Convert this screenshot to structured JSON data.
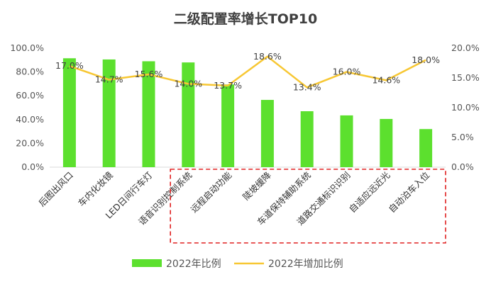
{
  "chart_data": {
    "type": "bar",
    "title": "二级配置率增长TOP10",
    "categories": [
      "后图出风口",
      "车内化妆镜",
      "LED日间行车灯",
      "语音识别控制系统",
      "远程启动功能",
      "陡坡缓降",
      "车道保持辅助系统",
      "道路交通标识识别",
      "自适应远近光",
      "自动泊车入位"
    ],
    "series": [
      {
        "name": "2022年比例",
        "type": "bar",
        "axis": "left",
        "color": "#5ce02e",
        "values": [
          91.5,
          90.5,
          89.0,
          88.0,
          69.5,
          56.5,
          47.0,
          43.5,
          40.5,
          32.0
        ]
      },
      {
        "name": "2022年增加比例",
        "type": "line",
        "axis": "right",
        "color": "#f7c733",
        "values": [
          17.0,
          14.7,
          15.6,
          14.0,
          13.7,
          18.6,
          13.4,
          16.0,
          14.6,
          18.0
        ],
        "labels": [
          "17.0%",
          "14.7%",
          "15.6%",
          "14.0%",
          "13.7%",
          "18.6%",
          "13.4%",
          "16.0%",
          "14.6%",
          "18.0%"
        ]
      }
    ],
    "y_left": {
      "min": 0,
      "max": 100,
      "ticks": [
        "0.0%",
        "20.0%",
        "40.0%",
        "60.0%",
        "80.0%",
        "100.0%"
      ]
    },
    "y_right": {
      "min": 0,
      "max": 20,
      "ticks": [
        "0.0%",
        "5.0%",
        "10.0%",
        "15.0%",
        "20.0%"
      ]
    },
    "grid": false,
    "legend": {
      "position": "bottom",
      "items": [
        "2022年比例",
        "2022年增加比例"
      ]
    },
    "annotation": {
      "type": "dashed-box",
      "color": "#e02020",
      "from_category": 3,
      "to_category": 9
    }
  }
}
